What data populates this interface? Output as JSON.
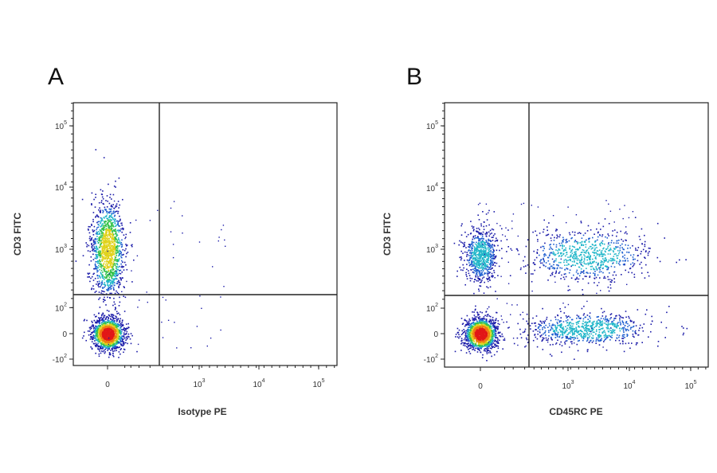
{
  "figure": {
    "panels": [
      "A",
      "B"
    ]
  },
  "chart_data": [
    {
      "panel": "A",
      "type": "scatter",
      "subtype": "flow-cytometry-density-dot-plot",
      "xlabel": "Isotype PE",
      "ylabel": "CD3 FITC",
      "x_scale": "biexponential",
      "y_scale": "biexponential",
      "x_ticks": [
        {
          "label": "0",
          "value": 0
        },
        {
          "label": "10",
          "exp": "3",
          "value": 1000
        },
        {
          "label": "10",
          "exp": "4",
          "value": 10000
        },
        {
          "label": "10",
          "exp": "5",
          "value": 100000
        }
      ],
      "y_ticks": [
        {
          "label": "-10",
          "exp": "2",
          "value": -100
        },
        {
          "label": "0",
          "value": 0
        },
        {
          "label": "10",
          "exp": "2",
          "value": 100
        },
        {
          "label": "10",
          "exp": "3",
          "value": 1000
        },
        {
          "label": "10",
          "exp": "4",
          "value": 10000
        },
        {
          "label": "10",
          "exp": "5",
          "value": 100000
        }
      ],
      "xlim": [
        -120,
        200000
      ],
      "ylim": [
        -200,
        250000
      ],
      "gates": {
        "x": 300,
        "y": 150
      },
      "populations": [
        {
          "x_center": 0,
          "y_center": 1000,
          "x_spread": "narrow",
          "y_spread": "wide",
          "density": "high",
          "quadrant": "upper-left"
        },
        {
          "x_center": 0,
          "y_center": 0,
          "x_spread": "narrow",
          "y_spread": "narrow",
          "density": "very high",
          "quadrant": "lower-left"
        }
      ],
      "colormap": [
        "#1a1aa8",
        "#1e5fd0",
        "#20b6c9",
        "#35c24a",
        "#e0d21a",
        "#f07c12",
        "#e21818"
      ]
    },
    {
      "panel": "B",
      "type": "scatter",
      "subtype": "flow-cytometry-density-dot-plot",
      "xlabel": "CD45RC PE",
      "ylabel": "CD3 FITC",
      "x_scale": "biexponential",
      "y_scale": "biexponential",
      "x_ticks": [
        {
          "label": "0",
          "value": 0
        },
        {
          "label": "10",
          "exp": "3",
          "value": 1000
        },
        {
          "label": "10",
          "exp": "4",
          "value": 10000
        },
        {
          "label": "10",
          "exp": "5",
          "value": 100000
        }
      ],
      "y_ticks": [
        {
          "label": "-10",
          "exp": "2",
          "value": -100
        },
        {
          "label": "0",
          "value": 0
        },
        {
          "label": "10",
          "exp": "2",
          "value": 100
        },
        {
          "label": "10",
          "exp": "3",
          "value": 1000
        },
        {
          "label": "10",
          "exp": "4",
          "value": 10000
        },
        {
          "label": "10",
          "exp": "5",
          "value": 100000
        }
      ],
      "xlim": [
        -120,
        200000
      ],
      "ylim": [
        -200,
        250000
      ],
      "gates": {
        "x": 200,
        "y": 150
      },
      "populations": [
        {
          "x_center": 0,
          "y_center": 800,
          "x_spread": "narrow",
          "y_spread": "medium",
          "density": "medium",
          "quadrant": "upper-left"
        },
        {
          "x_center": 2000,
          "y_center": 800,
          "x_spread": "wide",
          "y_spread": "medium",
          "density": "medium",
          "quadrant": "upper-right"
        },
        {
          "x_center": 0,
          "y_center": 0,
          "x_spread": "narrow",
          "y_spread": "narrow",
          "density": "very high",
          "quadrant": "lower-left"
        },
        {
          "x_center": 2000,
          "y_center": 20,
          "x_spread": "wide",
          "y_spread": "narrow",
          "density": "medium",
          "quadrant": "lower-right"
        }
      ],
      "colormap": [
        "#1a1aa8",
        "#1e5fd0",
        "#20b6c9",
        "#35c24a",
        "#e0d21a",
        "#f07c12",
        "#e21818"
      ]
    }
  ]
}
